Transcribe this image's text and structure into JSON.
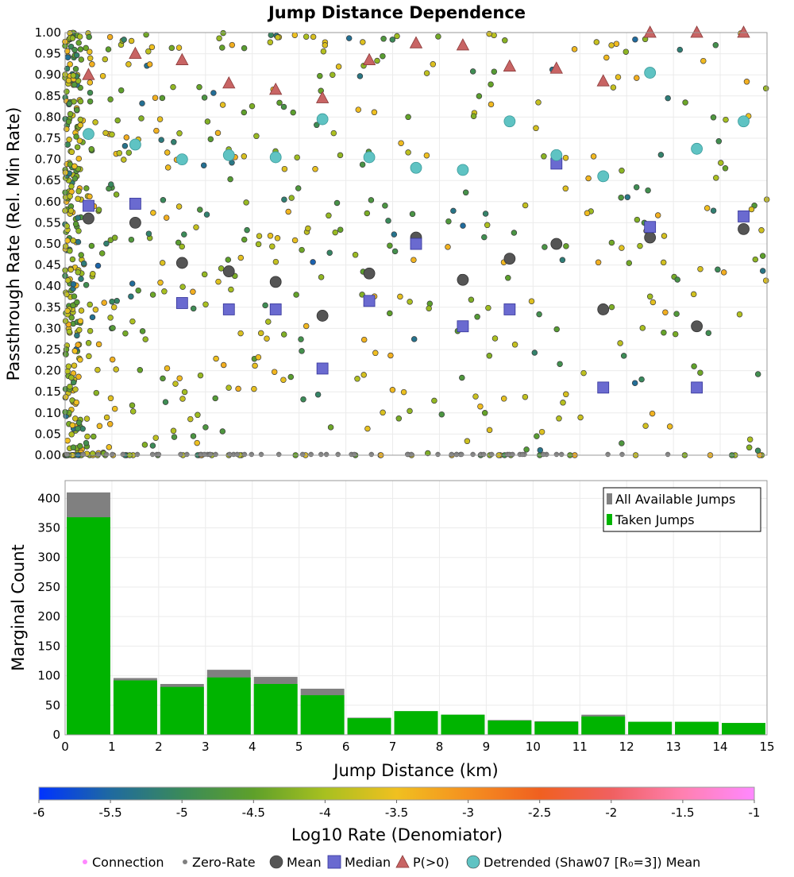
{
  "chart_data": [
    {
      "type": "scatter",
      "title": "Jump Distance Dependence",
      "ylabel": "Passthrough Rate (Rel. Min Rate)",
      "xlim": [
        0,
        15
      ],
      "ylim": [
        0,
        1
      ],
      "yticks": [
        "0.00",
        "0.05",
        "0.10",
        "0.15",
        "0.20",
        "0.25",
        "0.30",
        "0.35",
        "0.40",
        "0.45",
        "0.50",
        "0.55",
        "0.60",
        "0.65",
        "0.70",
        "0.75",
        "0.80",
        "0.85",
        "0.90",
        "0.95",
        "1.00"
      ],
      "series": [
        {
          "name": "Mean",
          "marker": "circle",
          "color": "#555555",
          "x": [
            0.5,
            1.5,
            2.5,
            3.5,
            4.5,
            5.5,
            6.5,
            7.5,
            8.5,
            9.5,
            10.5,
            11.5,
            12.5,
            13.5,
            14.5
          ],
          "y": [
            0.56,
            0.55,
            0.455,
            0.435,
            0.41,
            0.33,
            0.43,
            0.515,
            0.415,
            0.465,
            0.5,
            0.345,
            0.515,
            0.305,
            0.535
          ]
        },
        {
          "name": "Median",
          "marker": "square",
          "color": "#6a6ad0",
          "x": [
            0.5,
            1.5,
            2.5,
            3.5,
            4.5,
            5.5,
            6.5,
            7.5,
            8.5,
            9.5,
            10.5,
            11.5,
            12.5,
            13.5,
            14.5
          ],
          "y": [
            0.59,
            0.595,
            0.36,
            0.345,
            0.345,
            0.205,
            0.365,
            0.5,
            0.305,
            0.345,
            0.69,
            0.16,
            0.54,
            0.16,
            0.565
          ]
        },
        {
          "name": "P(>0)",
          "marker": "triangle",
          "color": "#c86464",
          "x": [
            0.5,
            1.5,
            2.5,
            3.5,
            4.5,
            5.5,
            6.5,
            7.5,
            8.5,
            9.5,
            10.5,
            11.5,
            12.5,
            13.5,
            14.5
          ],
          "y": [
            0.9,
            0.95,
            0.935,
            0.88,
            0.865,
            0.845,
            0.935,
            0.975,
            0.97,
            0.92,
            0.915,
            0.885,
            1.0,
            1.0,
            1.0
          ]
        },
        {
          "name": "Detrended (Shaw07 [R₀=3]) Mean",
          "marker": "circle",
          "color": "#5fc3c3",
          "x": [
            0.5,
            1.5,
            2.5,
            3.5,
            4.5,
            5.5,
            6.5,
            7.5,
            8.5,
            9.5,
            10.5,
            11.5,
            12.5,
            13.5,
            14.5
          ],
          "y": [
            0.76,
            0.735,
            0.7,
            0.71,
            0.705,
            0.795,
            0.705,
            0.68,
            0.675,
            0.79,
            0.71,
            0.66,
            0.905,
            0.725,
            0.79
          ]
        }
      ],
      "background_points": "pseudo-random connections colored by Log10 Rate; denser at short distances and near rate 0 and 1"
    },
    {
      "type": "bar",
      "xlabel": "Jump Distance (km)",
      "ylabel": "Marginal Count",
      "xlim": [
        0,
        15
      ],
      "ylim": [
        0,
        430
      ],
      "xticks": [
        "0",
        "1",
        "2",
        "3",
        "4",
        "5",
        "6",
        "7",
        "8",
        "9",
        "10",
        "11",
        "12",
        "13",
        "14",
        "15"
      ],
      "yticks": [
        "0",
        "50",
        "100",
        "150",
        "200",
        "250",
        "300",
        "350",
        "400"
      ],
      "bin_starts": [
        0,
        1,
        2,
        3,
        4,
        5,
        6,
        7,
        8,
        9,
        10,
        11,
        12,
        13,
        14
      ],
      "series": [
        {
          "name": "All Available Jumps",
          "color": "#808080",
          "values": [
            410,
            96,
            86,
            110,
            98,
            78,
            29,
            40,
            34,
            25,
            23,
            34,
            22,
            22,
            20
          ]
        },
        {
          "name": "Taken Jumps",
          "color": "#00b400",
          "values": [
            368,
            92,
            81,
            97,
            86,
            67,
            28,
            40,
            34,
            24,
            22,
            31,
            22,
            22,
            20
          ]
        }
      ],
      "legend": "top-right"
    }
  ],
  "colorbar": {
    "label": "Log10 Rate (Denomiator)",
    "range": [
      -6,
      -1
    ],
    "ticks": [
      "-6",
      "-5.5",
      "-5",
      "-4.5",
      "-4",
      "-3.5",
      "-3",
      "-2.5",
      "-2",
      "-1.5",
      "-1"
    ],
    "colors": [
      "#0033ff",
      "#1f6aa0",
      "#3a8a5a",
      "#5ea02a",
      "#a8c020",
      "#f0c020",
      "#f59020",
      "#f06020",
      "#f06060",
      "#ff80b0",
      "#ff88ff"
    ]
  },
  "legend": {
    "items": [
      {
        "label": "Connection",
        "marker": "dot",
        "color": "#ff88ff"
      },
      {
        "label": "Zero-Rate",
        "marker": "dot",
        "color": "#808080"
      },
      {
        "label": "Mean",
        "marker": "circle",
        "color": "#555555"
      },
      {
        "label": "Median",
        "marker": "square",
        "color": "#6a6ad0"
      },
      {
        "label": "P(>0)",
        "marker": "triangle",
        "color": "#c86464"
      },
      {
        "label": "Detrended (Shaw07 [R₀=3]) Mean",
        "marker": "circle",
        "color": "#5fc3c3"
      }
    ]
  }
}
